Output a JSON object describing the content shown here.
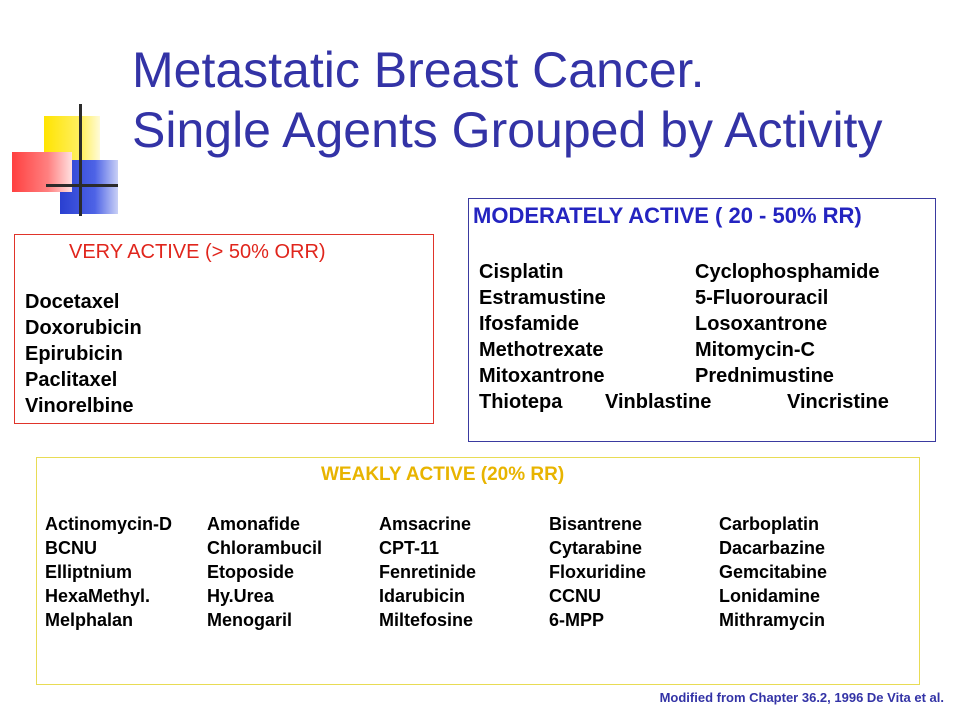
{
  "title": {
    "line1": "Metastatic Breast Cancer.",
    "line2": "Single Agents Grouped by Activity"
  },
  "very_active": {
    "heading": "VERY ACTIVE (> 50% ORR)",
    "agents": [
      "Docetaxel",
      "Doxorubicin",
      "Epirubicin",
      "Paclitaxel",
      "Vinorelbine"
    ]
  },
  "moderately_active": {
    "heading": "MODERATELY ACTIVE ( 20 - 50% RR)",
    "rows": [
      [
        "Cisplatin",
        "Cyclophosphamide"
      ],
      [
        "Estramustine",
        "5-Fluorouracil"
      ],
      [
        "Ifosfamide",
        "Losoxantrone"
      ],
      [
        "Methotrexate",
        "Mitomycin-C"
      ],
      [
        "Mitoxantrone",
        "Prednimustine"
      ],
      [
        "Thiotepa",
        "Vinblastine",
        "Vincristine"
      ]
    ]
  },
  "weakly_active": {
    "heading": "WEAKLY ACTIVE (20% RR)",
    "rows": [
      [
        "Actinomycin-D",
        "Amonafide",
        "Amsacrine",
        "Bisantrene",
        "Carboplatin"
      ],
      [
        "BCNU",
        "Chlorambucil",
        "CPT-11",
        "Cytarabine",
        "Dacarbazine"
      ],
      [
        "Elliptnium",
        "Etoposide",
        "Fenretinide",
        "Floxuridine",
        "Gemcitabine"
      ],
      [
        "HexaMethyl.",
        "Hy.Urea",
        "Idarubicin",
        "CCNU",
        "Lonidamine"
      ],
      [
        "Melphalan",
        "Menogaril",
        "Miltefosine",
        "6-MPP",
        "Mithramycin"
      ]
    ]
  },
  "citation": "Modified from Chapter 36.2, 1996 De Vita et al.",
  "colors": {
    "title": "#3333a6",
    "very_active_border": "#e0342a",
    "moderately_active_border": "#3a3aa0",
    "weakly_active_border": "#e8dc55",
    "weakly_active_heading": "#e8b400"
  }
}
